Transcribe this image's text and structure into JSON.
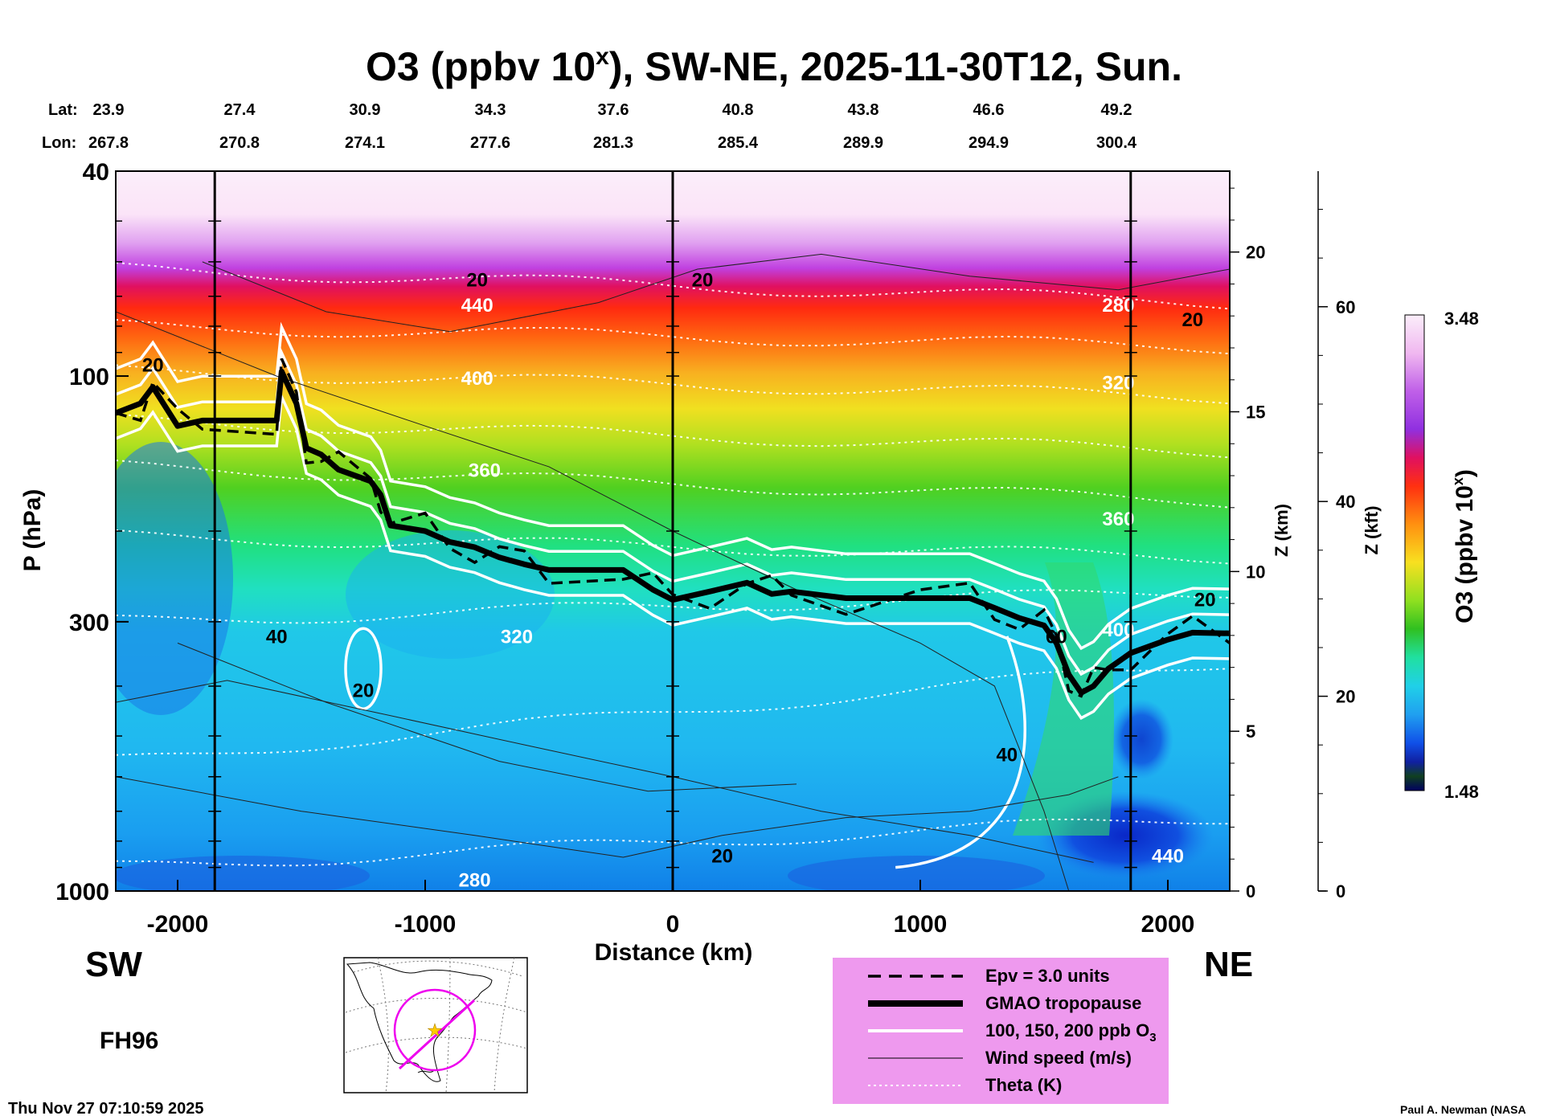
{
  "chart_data": {
    "type": "heatmap",
    "title": "O3 (ppbv 10",
    "title_superscript": "x",
    "title_suffix": "), SW-NE, 2025-11-30T12, Sun.",
    "xlabel": "Distance (km)",
    "ylabel": "P (hPa)",
    "xlim": [
      -2250,
      2250
    ],
    "ylim_hpa": [
      1000,
      40
    ],
    "x_ticks": [
      -2000,
      -1000,
      0,
      1000,
      2000
    ],
    "x_tick_labels": [
      "-2000",
      "-1000",
      "0",
      "1000",
      "2000"
    ],
    "y_ticks": [
      40,
      100,
      300,
      1000
    ],
    "y_tick_labels": [
      "40",
      "100",
      "300",
      "1000"
    ],
    "z_km_label": "Z (km)",
    "z_km_ticks": [
      0,
      5,
      10,
      15,
      20
    ],
    "z_km_tick_labels": [
      "0",
      "5",
      "10",
      "15",
      "20"
    ],
    "z_kft_label": "Z (kft)",
    "z_kft_ticks": [
      0,
      20,
      40,
      60
    ],
    "z_kft_tick_labels": [
      "0",
      "20",
      "40",
      "60"
    ],
    "lat_label": "Lat:",
    "lon_label": "Lon:",
    "lat_values": [
      "23.9",
      "27.4",
      "30.9",
      "34.3",
      "37.6",
      "40.8",
      "43.8",
      "46.6",
      "49.2"
    ],
    "lon_values": [
      "267.8",
      "270.8",
      "274.1",
      "277.6",
      "281.3",
      "285.4",
      "289.9",
      "294.9",
      "300.4"
    ],
    "colorbar_label": "O3 (ppbv 10",
    "colorbar_label_sup": "x",
    "colorbar_label_end": ")",
    "colorbar_max": "3.48",
    "colorbar_min": "1.48",
    "theta_labels": [
      "440",
      "400",
      "360",
      "320",
      "280",
      "280",
      "320",
      "360",
      "400",
      "440"
    ],
    "wind_labels": [
      "20",
      "20",
      "20",
      "40",
      "20",
      "20",
      "60",
      "40",
      "20",
      "20"
    ],
    "vertical_marker_km": [
      -1850,
      0,
      1850
    ],
    "tropopause": {
      "x": [
        -2250,
        -2150,
        -2100,
        -2000,
        -1900,
        -1600,
        -1580,
        -1520,
        -1480,
        -1420,
        -1350,
        -1220,
        -1180,
        -1140,
        -1000,
        -900,
        -800,
        -700,
        -600,
        -500,
        -200,
        -80,
        0,
        150,
        300,
        400,
        480,
        700,
        1000,
        1200,
        1300,
        1400,
        1500,
        1550,
        1600,
        1650,
        1700,
        1760,
        1850,
        2000,
        2100,
        2250
      ],
      "p": [
        118,
        113,
        105,
        125,
        122,
        122,
        98,
        113,
        138,
        142,
        152,
        160,
        170,
        195,
        200,
        210,
        215,
        225,
        232,
        238,
        238,
        260,
        272,
        262,
        252,
        265,
        262,
        270,
        270,
        270,
        282,
        295,
        305,
        330,
        380,
        412,
        400,
        370,
        345,
        325,
        315,
        316
      ]
    },
    "legend": [
      {
        "style": "dashed",
        "label": "Epv = 3.0 units"
      },
      {
        "style": "thick",
        "label": "GMAO tropopause"
      },
      {
        "style": "white",
        "label": "100, 150, 200 ppb O"
      },
      {
        "style": "thin",
        "label": "Wind speed (m/s)"
      },
      {
        "style": "dotted",
        "label": "Theta (K)"
      }
    ],
    "legend_o3_sub": "3"
  },
  "side": {
    "left": "SW",
    "right": "NE"
  },
  "forecast_hour": "FH96",
  "timestamp": "Thu Nov 27 07:10:59 2025",
  "credit": "Paul A. Newman (NASA",
  "colors": {
    "legend_bg": "#ee99ee",
    "map_track": "#ee00ee",
    "map_star": "#ffcc00"
  }
}
